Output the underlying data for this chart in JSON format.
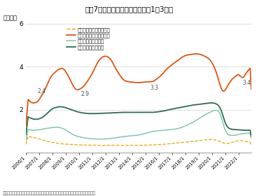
{
  "title": "図表7　在庫戸数の推移（首都圏1都3県）",
  "ylabel": "（万戸）",
  "source": "（資料）不動産経済研究所、東日本レインズの公表を基にニッセイ基礎研究所が作成",
  "ylim": [
    0,
    6
  ],
  "yticks": [
    0,
    2,
    4,
    6
  ],
  "legend": [
    "新築マンション在庫戸数",
    "中古マンション在庫戸数",
    "新築戸建て在庫戸数",
    "中古戸建て在庫戸数"
  ],
  "colors": {
    "shinchiku_mansion": "#e8a800",
    "chuko_mansion": "#e05510",
    "shinchiku_kodate": "#7ec8aa",
    "chuko_kodate": "#2d6e50"
  },
  "x_labels": [
    "2006/1",
    "2007/1",
    "2008/1",
    "2009/1",
    "2010/1",
    "2011/1",
    "2012/1",
    "2013/1",
    "2014/1",
    "2015/1",
    "2016/1",
    "2017/1",
    "2018/1",
    "2019/1",
    "2020/1",
    "2021/1",
    "2022/1"
  ]
}
